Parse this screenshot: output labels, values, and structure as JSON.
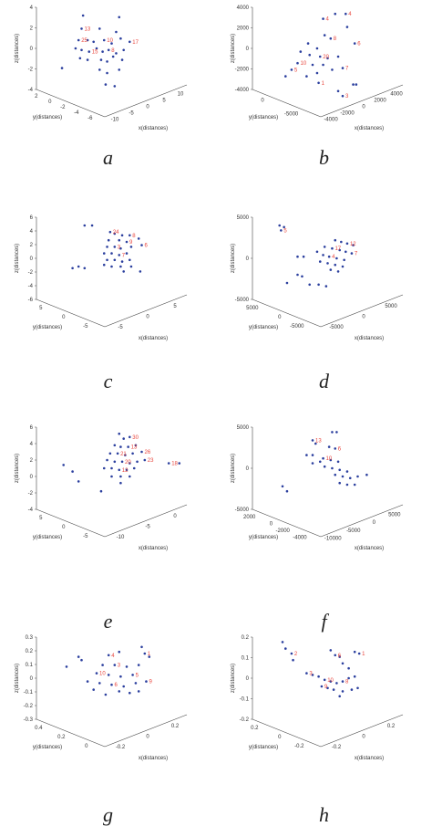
{
  "colors": {
    "point": "#2b3f9e",
    "marker": "#e8453c",
    "axis": "#444444",
    "text": "#333333"
  },
  "chart_data": [
    {
      "type": "scatter",
      "caption": "a",
      "xlabel": "x(distances)",
      "ylabel": "y(distances)",
      "zlabel": "z(distances)",
      "x_ticks": [
        "-10",
        "-5",
        "0",
        "5",
        "10"
      ],
      "y_ticks": [
        "2",
        "0",
        "-2",
        "-4",
        "-6"
      ],
      "z_ticks": [
        "4",
        "2",
        "0",
        "-2",
        "-4"
      ],
      "point_labels": [
        "13",
        "25",
        "10",
        "17",
        "15",
        "8"
      ],
      "projected_points": [
        [
          0.31,
          0.05
        ],
        [
          0.55,
          0.06
        ],
        [
          0.3,
          0.13
        ],
        [
          0.42,
          0.13
        ],
        [
          0.53,
          0.15
        ],
        [
          0.28,
          0.2
        ],
        [
          0.34,
          0.2
        ],
        [
          0.38,
          0.21
        ],
        [
          0.45,
          0.2
        ],
        [
          0.5,
          0.22
        ],
        [
          0.56,
          0.19
        ],
        [
          0.62,
          0.21
        ],
        [
          0.26,
          0.25
        ],
        [
          0.3,
          0.26
        ],
        [
          0.35,
          0.27
        ],
        [
          0.4,
          0.25
        ],
        [
          0.44,
          0.27
        ],
        [
          0.48,
          0.26
        ],
        [
          0.53,
          0.28
        ],
        [
          0.58,
          0.26
        ],
        [
          0.29,
          0.31
        ],
        [
          0.34,
          0.32
        ],
        [
          0.43,
          0.32
        ],
        [
          0.47,
          0.33
        ],
        [
          0.51,
          0.3
        ],
        [
          0.57,
          0.32
        ],
        [
          0.17,
          0.37
        ],
        [
          0.42,
          0.38
        ],
        [
          0.47,
          0.4
        ],
        [
          0.55,
          0.38
        ],
        [
          0.46,
          0.47
        ],
        [
          0.52,
          0.48
        ]
      ]
    },
    {
      "type": "scatter",
      "caption": "b",
      "xlabel": "x(distances)",
      "ylabel": "y(distances)",
      "zlabel": "z(distances)",
      "x_ticks": [
        "-4000",
        "-2000",
        "0",
        "2000",
        "4000"
      ],
      "y_ticks": [
        "0",
        "-5000"
      ],
      "z_ticks": [
        "4000",
        "2000",
        "0",
        "-2000",
        "-4000"
      ],
      "point_labels": [
        "4",
        "8",
        "6",
        "20",
        "10",
        "5",
        "7",
        "1",
        "3",
        "4"
      ],
      "projected_points": [
        [
          0.55,
          0.04
        ],
        [
          0.62,
          0.04
        ],
        [
          0.47,
          0.07
        ],
        [
          0.63,
          0.12
        ],
        [
          0.48,
          0.17
        ],
        [
          0.52,
          0.19
        ],
        [
          0.37,
          0.22
        ],
        [
          0.43,
          0.25
        ],
        [
          0.68,
          0.22
        ],
        [
          0.32,
          0.27
        ],
        [
          0.38,
          0.29
        ],
        [
          0.45,
          0.3
        ],
        [
          0.5,
          0.31
        ],
        [
          0.57,
          0.3
        ],
        [
          0.3,
          0.34
        ],
        [
          0.4,
          0.35
        ],
        [
          0.47,
          0.35
        ],
        [
          0.26,
          0.38
        ],
        [
          0.43,
          0.4
        ],
        [
          0.53,
          0.38
        ],
        [
          0.6,
          0.37
        ],
        [
          0.22,
          0.42
        ],
        [
          0.36,
          0.42
        ],
        [
          0.44,
          0.46
        ],
        [
          0.57,
          0.51
        ],
        [
          0.67,
          0.47
        ],
        [
          0.6,
          0.54
        ],
        [
          0.69,
          0.47
        ]
      ]
    },
    {
      "type": "scatter",
      "caption": "c",
      "xlabel": "x(distances)",
      "ylabel": "y(distances)",
      "zlabel": "z(distances)",
      "x_ticks": [
        "-5",
        "0",
        "5"
      ],
      "y_ticks": [
        "5",
        "0",
        "-5"
      ],
      "z_ticks": [
        "6",
        "4",
        "2",
        "0",
        "-2",
        "-4",
        "-6"
      ],
      "point_labels": [
        "24",
        "8",
        "9",
        "3",
        "6",
        "7"
      ],
      "projected_points": [
        [
          0.32,
          0.05
        ],
        [
          0.37,
          0.05
        ],
        [
          0.49,
          0.09
        ],
        [
          0.52,
          0.1
        ],
        [
          0.57,
          0.11
        ],
        [
          0.62,
          0.11
        ],
        [
          0.48,
          0.14
        ],
        [
          0.55,
          0.14
        ],
        [
          0.6,
          0.15
        ],
        [
          0.68,
          0.13
        ],
        [
          0.47,
          0.18
        ],
        [
          0.52,
          0.18
        ],
        [
          0.56,
          0.19
        ],
        [
          0.63,
          0.18
        ],
        [
          0.7,
          0.17
        ],
        [
          0.45,
          0.22
        ],
        [
          0.5,
          0.22
        ],
        [
          0.55,
          0.23
        ],
        [
          0.6,
          0.22
        ],
        [
          0.47,
          0.26
        ],
        [
          0.52,
          0.26
        ],
        [
          0.57,
          0.27
        ],
        [
          0.62,
          0.26
        ],
        [
          0.45,
          0.29
        ],
        [
          0.5,
          0.3
        ],
        [
          0.56,
          0.3
        ],
        [
          0.63,
          0.3
        ],
        [
          0.28,
          0.3
        ],
        [
          0.24,
          0.31
        ],
        [
          0.32,
          0.31
        ],
        [
          0.69,
          0.33
        ],
        [
          0.58,
          0.33
        ]
      ]
    },
    {
      "type": "scatter",
      "caption": "d",
      "xlabel": "x(distances)",
      "ylabel": "y(distances)",
      "zlabel": "z(distances)",
      "x_ticks": [
        "-5000",
        "0",
        "5000"
      ],
      "y_ticks": [
        "5000",
        "0",
        "-5000"
      ],
      "z_ticks": [
        "5000",
        "0",
        "-5000"
      ],
      "point_labels": [
        "5",
        "12",
        "17",
        "7",
        "4"
      ],
      "projected_points": [
        [
          0.18,
          0.05
        ],
        [
          0.21,
          0.06
        ],
        [
          0.19,
          0.08
        ],
        [
          0.55,
          0.14
        ],
        [
          0.59,
          0.15
        ],
        [
          0.63,
          0.16
        ],
        [
          0.67,
          0.17
        ],
        [
          0.48,
          0.18
        ],
        [
          0.53,
          0.19
        ],
        [
          0.58,
          0.2
        ],
        [
          0.62,
          0.21
        ],
        [
          0.66,
          0.22
        ],
        [
          0.43,
          0.21
        ],
        [
          0.47,
          0.23
        ],
        [
          0.51,
          0.24
        ],
        [
          0.56,
          0.25
        ],
        [
          0.61,
          0.26
        ],
        [
          0.45,
          0.27
        ],
        [
          0.5,
          0.28
        ],
        [
          0.55,
          0.29
        ],
        [
          0.6,
          0.3
        ],
        [
          0.52,
          0.32
        ],
        [
          0.57,
          0.33
        ],
        [
          0.34,
          0.24
        ],
        [
          0.3,
          0.24
        ],
        [
          0.3,
          0.35
        ],
        [
          0.33,
          0.36
        ],
        [
          0.38,
          0.41
        ],
        [
          0.44,
          0.41
        ],
        [
          0.49,
          0.42
        ],
        [
          0.23,
          0.4
        ]
      ]
    },
    {
      "type": "scatter",
      "caption": "e",
      "xlabel": "x(distances)",
      "ylabel": "y(distances)",
      "zlabel": "z(distances)",
      "x_ticks": [
        "-10",
        "-5",
        "0"
      ],
      "y_ticks": [
        "5",
        "0",
        "-5"
      ],
      "z_ticks": [
        "6",
        "4",
        "2",
        "0",
        "-2",
        "-4"
      ],
      "point_labels": [
        "30",
        "13",
        "21",
        "26",
        "20",
        "23",
        "12",
        "18"
      ],
      "projected_points": [
        [
          0.55,
          0.04
        ],
        [
          0.58,
          0.07
        ],
        [
          0.62,
          0.06
        ],
        [
          0.52,
          0.11
        ],
        [
          0.56,
          0.12
        ],
        [
          0.61,
          0.12
        ],
        [
          0.66,
          0.11
        ],
        [
          0.49,
          0.16
        ],
        [
          0.54,
          0.16
        ],
        [
          0.59,
          0.17
        ],
        [
          0.64,
          0.16
        ],
        [
          0.7,
          0.15
        ],
        [
          0.47,
          0.2
        ],
        [
          0.52,
          0.21
        ],
        [
          0.57,
          0.21
        ],
        [
          0.62,
          0.22
        ],
        [
          0.67,
          0.21
        ],
        [
          0.72,
          0.2
        ],
        [
          0.45,
          0.25
        ],
        [
          0.5,
          0.25
        ],
        [
          0.55,
          0.26
        ],
        [
          0.6,
          0.26
        ],
        [
          0.65,
          0.25
        ],
        [
          0.88,
          0.22
        ],
        [
          0.95,
          0.22
        ],
        [
          0.5,
          0.3
        ],
        [
          0.56,
          0.3
        ],
        [
          0.62,
          0.3
        ],
        [
          0.56,
          0.34
        ],
        [
          0.18,
          0.23
        ],
        [
          0.24,
          0.27
        ],
        [
          0.28,
          0.33
        ],
        [
          0.43,
          0.39
        ]
      ]
    },
    {
      "type": "scatter",
      "caption": "f",
      "xlabel": "x(distances)",
      "ylabel": "y(distances)",
      "zlabel": "z(distances)",
      "x_ticks": [
        "-10000",
        "-5000",
        "0",
        "5000"
      ],
      "y_ticks": [
        "2000",
        "0",
        "-2000",
        "-4000"
      ],
      "z_ticks": [
        "5000",
        "0",
        "-5000"
      ],
      "point_labels": [
        "13",
        "6",
        "10"
      ],
      "projected_points": [
        [
          0.53,
          0.03
        ],
        [
          0.56,
          0.03
        ],
        [
          0.4,
          0.08
        ],
        [
          0.42,
          0.1
        ],
        [
          0.51,
          0.12
        ],
        [
          0.55,
          0.13
        ],
        [
          0.36,
          0.17
        ],
        [
          0.4,
          0.17
        ],
        [
          0.47,
          0.19
        ],
        [
          0.52,
          0.2
        ],
        [
          0.57,
          0.21
        ],
        [
          0.48,
          0.24
        ],
        [
          0.53,
          0.25
        ],
        [
          0.58,
          0.26
        ],
        [
          0.63,
          0.27
        ],
        [
          0.55,
          0.29
        ],
        [
          0.6,
          0.3
        ],
        [
          0.65,
          0.31
        ],
        [
          0.7,
          0.3
        ],
        [
          0.76,
          0.29
        ],
        [
          0.58,
          0.34
        ],
        [
          0.63,
          0.35
        ],
        [
          0.68,
          0.35
        ],
        [
          0.2,
          0.36
        ],
        [
          0.23,
          0.39
        ],
        [
          0.4,
          0.22
        ],
        [
          0.45,
          0.21
        ]
      ]
    },
    {
      "type": "scatter",
      "caption": "g",
      "xlabel": "x(distances)",
      "ylabel": "y(distances)",
      "zlabel": "z(distances)",
      "x_ticks": [
        "-0.2",
        "0",
        "0.2"
      ],
      "y_ticks": [
        "0.4",
        "0.2",
        "0"
      ],
      "z_ticks": [
        "0.3",
        "0.2",
        "0.1",
        "0",
        "-0.1",
        "-0.2",
        "-0.3"
      ],
      "point_labels": [
        "4",
        "1",
        "3",
        "10",
        "5",
        "6",
        "9"
      ],
      "projected_points": [
        [
          0.28,
          0.12
        ],
        [
          0.3,
          0.14
        ],
        [
          0.48,
          0.11
        ],
        [
          0.55,
          0.09
        ],
        [
          0.7,
          0.06
        ],
        [
          0.72,
          0.1
        ],
        [
          0.75,
          0.12
        ],
        [
          0.44,
          0.17
        ],
        [
          0.52,
          0.17
        ],
        [
          0.6,
          0.18
        ],
        [
          0.68,
          0.17
        ],
        [
          0.4,
          0.22
        ],
        [
          0.48,
          0.23
        ],
        [
          0.56,
          0.24
        ],
        [
          0.64,
          0.23
        ],
        [
          0.34,
          0.27
        ],
        [
          0.42,
          0.28
        ],
        [
          0.5,
          0.29
        ],
        [
          0.58,
          0.3
        ],
        [
          0.66,
          0.28
        ],
        [
          0.73,
          0.27
        ],
        [
          0.38,
          0.32
        ],
        [
          0.55,
          0.33
        ],
        [
          0.62,
          0.34
        ],
        [
          0.68,
          0.33
        ],
        [
          0.46,
          0.35
        ],
        [
          0.2,
          0.18
        ]
      ]
    },
    {
      "type": "scatter",
      "caption": "h",
      "xlabel": "x(distances)",
      "ylabel": "y(distances)",
      "zlabel": "z(distances)",
      "x_ticks": [
        "-0.2",
        "0",
        "0.2"
      ],
      "y_ticks": [
        "0.2",
        "0",
        "-0.2"
      ],
      "z_ticks": [
        "0.2",
        "0.1",
        "0",
        "-0.1",
        "-0.2"
      ],
      "point_labels": [
        "2",
        "6",
        "1",
        "3",
        "10",
        "8",
        "9"
      ],
      "projected_points": [
        [
          0.2,
          0.03
        ],
        [
          0.22,
          0.07
        ],
        [
          0.26,
          0.1
        ],
        [
          0.27,
          0.14
        ],
        [
          0.52,
          0.08
        ],
        [
          0.55,
          0.11
        ],
        [
          0.58,
          0.12
        ],
        [
          0.68,
          0.09
        ],
        [
          0.71,
          0.1
        ],
        [
          0.6,
          0.16
        ],
        [
          0.64,
          0.19
        ],
        [
          0.36,
          0.22
        ],
        [
          0.4,
          0.23
        ],
        [
          0.44,
          0.24
        ],
        [
          0.48,
          0.26
        ],
        [
          0.52,
          0.27
        ],
        [
          0.56,
          0.28
        ],
        [
          0.6,
          0.27
        ],
        [
          0.64,
          0.25
        ],
        [
          0.68,
          0.24
        ],
        [
          0.46,
          0.3
        ],
        [
          0.5,
          0.31
        ],
        [
          0.54,
          0.32
        ],
        [
          0.6,
          0.33
        ],
        [
          0.66,
          0.32
        ],
        [
          0.7,
          0.31
        ],
        [
          0.58,
          0.36
        ]
      ]
    }
  ]
}
